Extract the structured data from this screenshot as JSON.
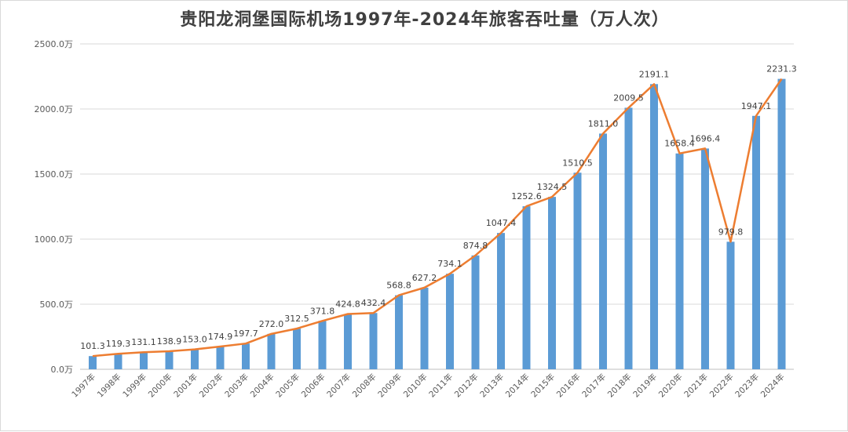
{
  "chart_data": {
    "type": "bar+line",
    "title": "贵阳龙洞堡国际机场1997年-2024年旅客吞吐量（万人次）",
    "categories": [
      "1997年",
      "1998年",
      "1999年",
      "2000年",
      "2001年",
      "2002年",
      "2003年",
      "2004年",
      "2005年",
      "2006年",
      "2007年",
      "2008年",
      "2009年",
      "2010年",
      "2011年",
      "2012年",
      "2013年",
      "2014年",
      "2015年",
      "2016年",
      "2017年",
      "2018年",
      "2019年",
      "2020年",
      "2021年",
      "2022年",
      "2023年",
      "2024年"
    ],
    "values": [
      101.3,
      119.3,
      131.1,
      138.9,
      153.0,
      174.9,
      197.7,
      272.0,
      312.5,
      371.8,
      424.8,
      432.4,
      568.8,
      627.2,
      734.1,
      874.8,
      1047.4,
      1252.6,
      1324.5,
      1510.5,
      1811.0,
      2009.5,
      2191.1,
      1658.4,
      1696.4,
      979.8,
      1947.1,
      2231.3
    ],
    "ylim": [
      0,
      2500
    ],
    "yticks": [
      "0.0万",
      "500.0万",
      "1000.0万",
      "1500.0万",
      "2000.0万",
      "2500.0万"
    ],
    "grid": true,
    "colors": {
      "bar": "#5b9bd5",
      "line": "#ed7d31"
    }
  }
}
